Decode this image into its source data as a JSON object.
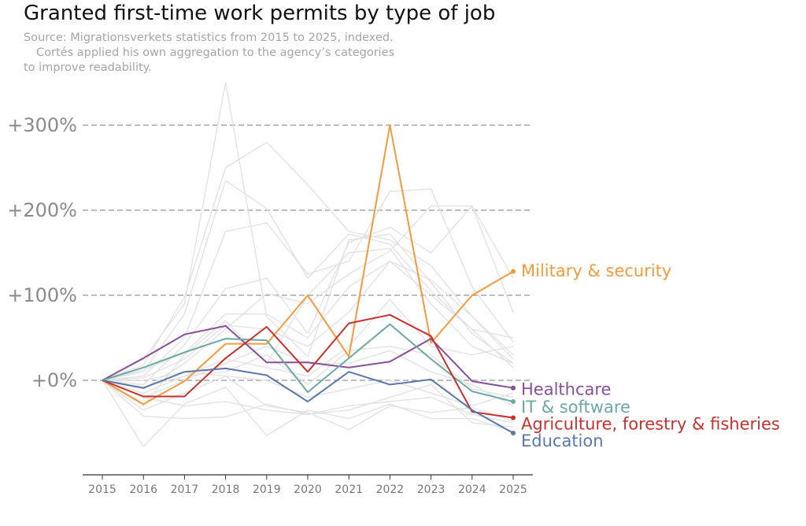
{
  "chart_data": {
    "type": "line",
    "title": "Granted first-time work permits by type of job",
    "subtitle": [
      "Source: Migrationsverkets statistics from 2015 to 2025, indexed.",
      "Cortés applied his own aggregation to the agency’s categories",
      "to improve readability."
    ],
    "xlabel": "",
    "ylabel": "",
    "x": [
      2015,
      2016,
      2017,
      2018,
      2019,
      2020,
      2021,
      2022,
      2023,
      2024,
      2025
    ],
    "x_tick_labels": [
      "2015",
      "2016",
      "2017",
      "2018",
      "2019",
      "2020",
      "2021",
      "2022",
      "2023",
      "2024",
      "2025"
    ],
    "ylim": [
      -110,
      350
    ],
    "y_ticks": [
      0,
      100,
      200,
      300
    ],
    "y_tick_labels": [
      "+0%",
      "+100%",
      "+200%",
      "+300%"
    ],
    "grid": "horizontal dashed at y ticks",
    "legend": "direct labels at line ends",
    "series": [
      {
        "name": "Military & security",
        "color": "#f59a3c",
        "highlight": true,
        "values": [
          0,
          -28,
          -1,
          43,
          43,
          100,
          28,
          300,
          44,
          100,
          128
        ]
      },
      {
        "name": "Healthcare",
        "color": "#8a4f9a",
        "highlight": true,
        "values": [
          0,
          26,
          54,
          64,
          21,
          21,
          15,
          22,
          49,
          -1,
          -9
        ]
      },
      {
        "name": "IT & software",
        "color": "#6aa9a1",
        "highlight": true,
        "values": [
          0,
          15,
          33,
          49,
          47,
          -14,
          26,
          66,
          25,
          -13,
          -25
        ]
      },
      {
        "name": "Agriculture, forestry & fisheries",
        "color": "#c8302c",
        "highlight": true,
        "values": [
          0,
          -19,
          -19,
          26,
          63,
          10,
          67,
          77,
          52,
          -37,
          -44
        ]
      },
      {
        "name": "Education",
        "color": "#5a78aa",
        "highlight": true,
        "values": [
          0,
          -9,
          10,
          14,
          6,
          -25,
          10,
          -5,
          1,
          -35,
          -62
        ]
      },
      {
        "color": "#e2e2e2",
        "values": [
          0,
          25,
          90,
          350,
          75,
          28,
          165,
          172,
          115,
          55,
          20
        ]
      },
      {
        "color": "#e2e2e2",
        "values": [
          0,
          18,
          98,
          250,
          280,
          230,
          175,
          165,
          135,
          75,
          25
        ]
      },
      {
        "color": "#e2e2e2",
        "values": [
          0,
          10,
          78,
          235,
          202,
          120,
          172,
          160,
          105,
          60,
          15
        ]
      },
      {
        "color": "#e2e2e2",
        "values": [
          0,
          5,
          50,
          175,
          185,
          125,
          140,
          222,
          225,
          110,
          45
        ]
      },
      {
        "color": "#e2e2e2",
        "values": [
          0,
          -5,
          42,
          108,
          120,
          55,
          162,
          180,
          150,
          205,
          120
        ]
      },
      {
        "color": "#e2e2e2",
        "values": [
          0,
          12,
          32,
          78,
          78,
          50,
          110,
          140,
          118,
          75,
          30
        ]
      },
      {
        "color": "#e2e2e2",
        "values": [
          0,
          -10,
          20,
          60,
          102,
          90,
          125,
          152,
          205,
          205,
          80
        ]
      },
      {
        "color": "#e2e2e2",
        "values": [
          0,
          3,
          25,
          65,
          60,
          40,
          80,
          140,
          100,
          60,
          50
        ]
      },
      {
        "color": "#e2e2e2",
        "values": [
          0,
          -30,
          30,
          70,
          20,
          100,
          150,
          155,
          90,
          40,
          20
        ]
      },
      {
        "color": "#e2e2e2",
        "values": [
          0,
          -15,
          5,
          25,
          15,
          5,
          40,
          95,
          40,
          30,
          40
        ]
      },
      {
        "color": "#e2e2e2",
        "values": [
          0,
          -8,
          5,
          10,
          30,
          -5,
          35,
          40,
          30,
          -10,
          -20
        ]
      },
      {
        "color": "#e2e2e2",
        "values": [
          0,
          -20,
          0,
          20,
          40,
          20,
          20,
          35,
          10,
          -5,
          -30
        ]
      },
      {
        "color": "#e2e2e2",
        "values": [
          0,
          -42,
          -45,
          -43,
          -28,
          -40,
          -35,
          -20,
          -5,
          -50,
          -55
        ]
      },
      {
        "color": "#e2e2e2",
        "values": [
          0,
          -78,
          -28,
          -8,
          -65,
          -35,
          -45,
          -28,
          -45,
          -45,
          -60
        ]
      },
      {
        "color": "#e2e2e2",
        "values": [
          0,
          -35,
          -15,
          5,
          -30,
          -38,
          -58,
          -30,
          -38,
          -32,
          -48
        ]
      },
      {
        "color": "#e2e2e2",
        "values": [
          0,
          -20,
          -30,
          -25,
          -35,
          -40,
          -30,
          -25,
          -20,
          -40,
          -50
        ]
      },
      {
        "color": "#e2e2e2",
        "values": [
          0,
          0,
          10,
          5,
          0,
          -20,
          -10,
          0,
          -15,
          -30,
          -15
        ]
      }
    ]
  }
}
